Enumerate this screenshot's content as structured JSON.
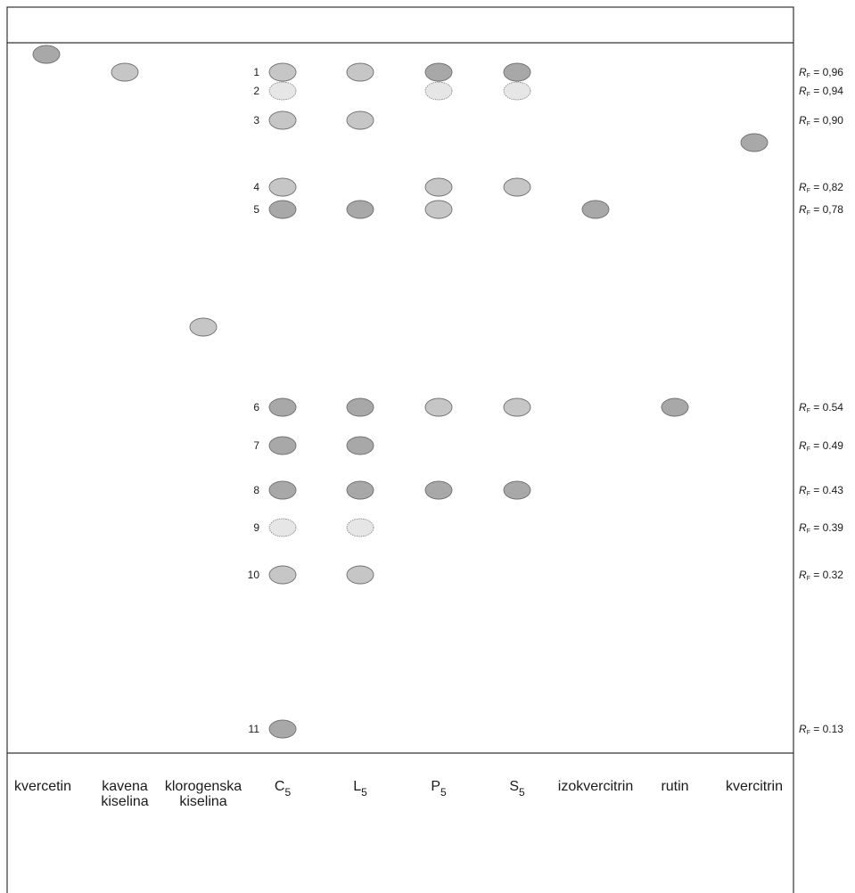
{
  "lanes": [
    {
      "id": "kvercetin",
      "label": "kvercetin",
      "label2": ""
    },
    {
      "id": "kavena",
      "label": "kavena",
      "label2": "kiselina"
    },
    {
      "id": "klorogenska",
      "label": "klorogenska",
      "label2": "kiselina"
    },
    {
      "id": "C5",
      "label": "C",
      "sub": "5"
    },
    {
      "id": "L5",
      "label": "L",
      "sub": "5"
    },
    {
      "id": "P5",
      "label": "P",
      "sub": "5"
    },
    {
      "id": "S5",
      "label": "S",
      "sub": "5"
    },
    {
      "id": "izokvercitrin",
      "label": "izokvercitrin",
      "label2": ""
    },
    {
      "id": "rutin",
      "label": "rutin",
      "label2": ""
    },
    {
      "id": "kvercitrin",
      "label": "kvercitrin",
      "label2": ""
    }
  ],
  "zones": [
    {
      "num": "1",
      "rf_label": "R",
      "rf_sub": "F",
      "rf_value": " = 0,96",
      "rf": 0.96
    },
    {
      "num": "2",
      "rf_label": "R",
      "rf_sub": "F",
      "rf_value": " = 0,94",
      "rf": 0.94
    },
    {
      "num": "3",
      "rf_label": "R",
      "rf_sub": "F",
      "rf_value": " = 0,90",
      "rf": 0.9
    },
    {
      "num": "4",
      "rf_label": "R",
      "rf_sub": "F",
      "rf_value": " = 0,82",
      "rf": 0.82
    },
    {
      "num": "5",
      "rf_label": "R",
      "rf_sub": "F",
      "rf_value": " = 0,78",
      "rf": 0.78
    },
    {
      "num": "6",
      "rf_label": "R",
      "rf_sub": "F",
      "rf_value": " = 0.54",
      "rf": 0.54
    },
    {
      "num": "7",
      "rf_label": "R",
      "rf_sub": "F",
      "rf_value": " = 0.49",
      "rf": 0.49
    },
    {
      "num": "8",
      "rf_label": "R",
      "rf_sub": "F",
      "rf_value": " = 0.43",
      "rf": 0.43
    },
    {
      "num": "9",
      "rf_label": "R",
      "rf_sub": "F",
      "rf_value": " = 0.39",
      "rf": 0.39
    },
    {
      "num": "10",
      "rf_label": "R",
      "rf_sub": "F",
      "rf_value": " = 0.32",
      "rf": 0.32
    },
    {
      "num": "11",
      "rf_label": "R",
      "rf_sub": "F",
      "rf_value": " = 0.13",
      "rf": 0.13
    }
  ],
  "spot_colors": {
    "dark": "#a8a8a8",
    "medium": "#c6c6c6",
    "light": "#e6e6e6",
    "stroke": "#707070"
  }
}
